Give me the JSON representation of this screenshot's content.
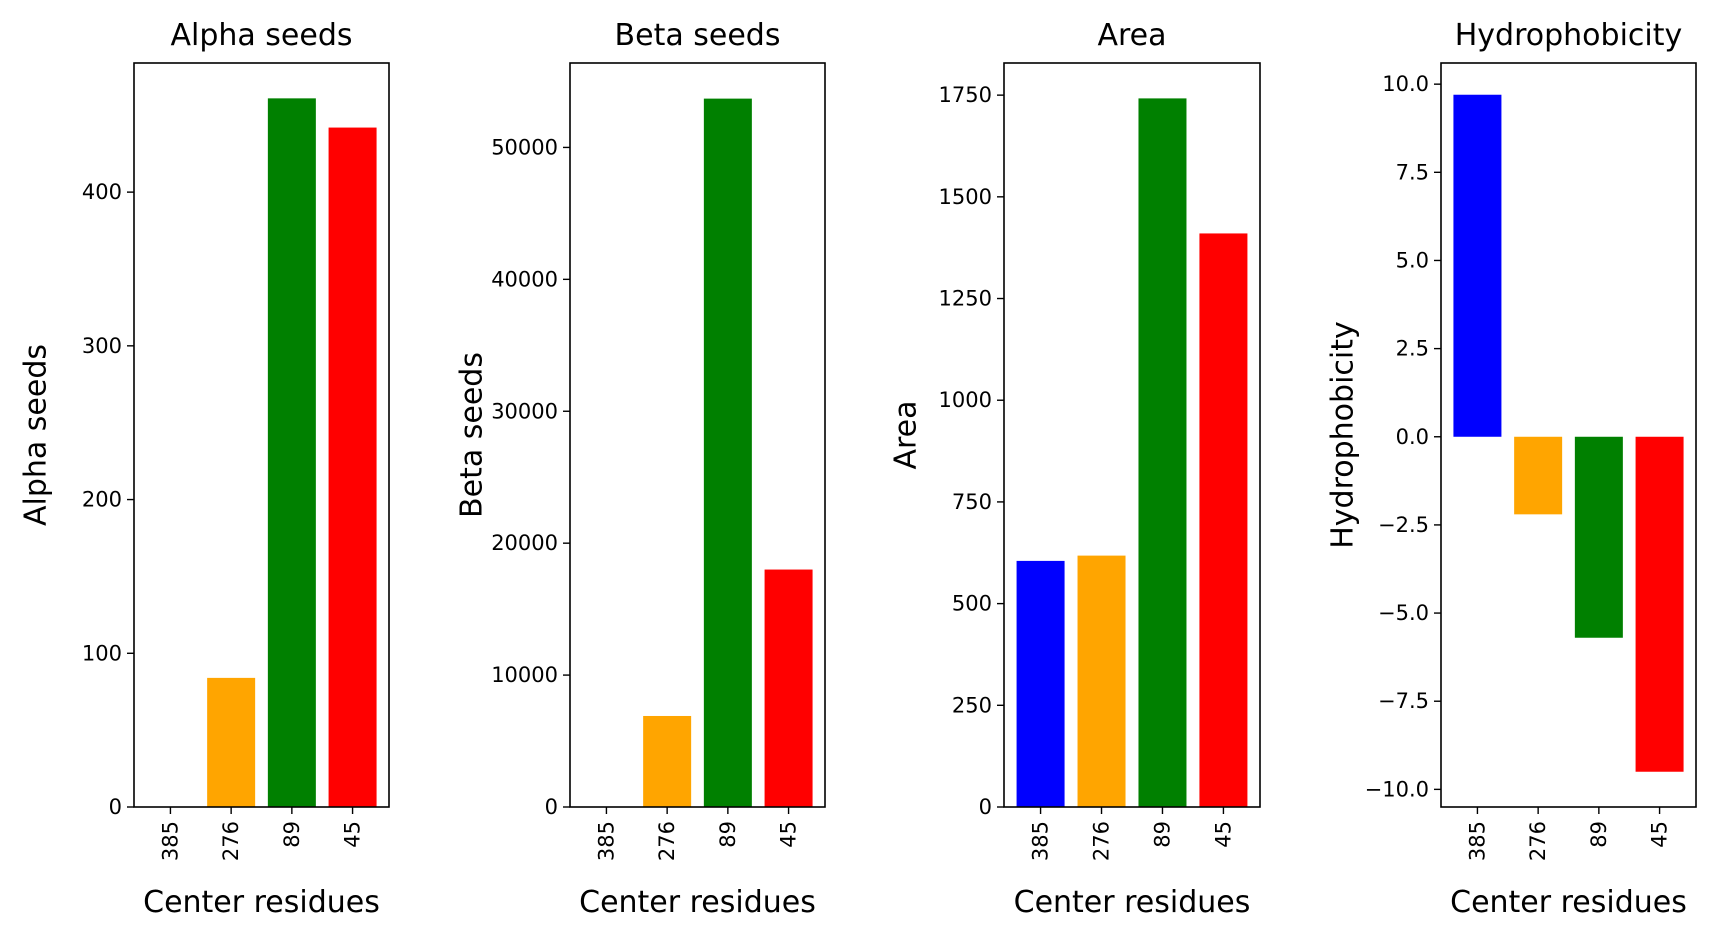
{
  "chart_data": [
    {
      "type": "bar",
      "title": "Alpha seeds",
      "xlabel": "Center residues",
      "ylabel": "Alpha seeds",
      "categories": [
        "385",
        "276",
        "89",
        "45"
      ],
      "values": [
        0,
        84,
        461,
        442
      ],
      "colors": [
        "#0000ff",
        "#ffa500",
        "#008000",
        "#ff0000"
      ],
      "ylim": [
        0,
        484
      ],
      "yticks": [
        0,
        100,
        200,
        300,
        400
      ],
      "ytick_labels": [
        "0",
        "100",
        "200",
        "300",
        "400"
      ],
      "grid": false
    },
    {
      "type": "bar",
      "title": "Beta seeds",
      "xlabel": "Center residues",
      "ylabel": "Beta seeds",
      "categories": [
        "385",
        "276",
        "89",
        "45"
      ],
      "values": [
        0,
        6900,
        53700,
        18000
      ],
      "colors": [
        "#0000ff",
        "#ffa500",
        "#008000",
        "#ff0000"
      ],
      "ylim": [
        0,
        56400
      ],
      "yticks": [
        0,
        10000,
        20000,
        30000,
        40000,
        50000
      ],
      "ytick_labels": [
        "0",
        "10000",
        "20000",
        "30000",
        "40000",
        "50000"
      ],
      "grid": false
    },
    {
      "type": "bar",
      "title": "Area",
      "xlabel": "Center residues",
      "ylabel": "Area",
      "categories": [
        "385",
        "276",
        "89",
        "45"
      ],
      "values": [
        605,
        618,
        1742,
        1410
      ],
      "colors": [
        "#0000ff",
        "#ffa500",
        "#008000",
        "#ff0000"
      ],
      "ylim": [
        0,
        1829
      ],
      "yticks": [
        0,
        250,
        500,
        750,
        1000,
        1250,
        1500,
        1750
      ],
      "ytick_labels": [
        "0",
        "250",
        "500",
        "750",
        "1000",
        "1250",
        "1500",
        "1750"
      ],
      "grid": false
    },
    {
      "type": "bar",
      "title": "Hydrophobicity",
      "xlabel": "Center residues",
      "ylabel": "Hydrophobicity",
      "categories": [
        "385",
        "276",
        "89",
        "45"
      ],
      "values": [
        9.7,
        -2.2,
        -5.7,
        -9.5
      ],
      "colors": [
        "#0000ff",
        "#ffa500",
        "#008000",
        "#ff0000"
      ],
      "ylim": [
        -10.5,
        10.6
      ],
      "yticks": [
        -10,
        -7.5,
        -5,
        -2.5,
        0,
        2.5,
        5,
        7.5,
        10
      ],
      "ytick_labels": [
        "−10.0",
        "−7.5",
        "−5.0",
        "−2.5",
        "0.0",
        "2.5",
        "5.0",
        "7.5",
        "10.0"
      ],
      "grid": false
    }
  ]
}
